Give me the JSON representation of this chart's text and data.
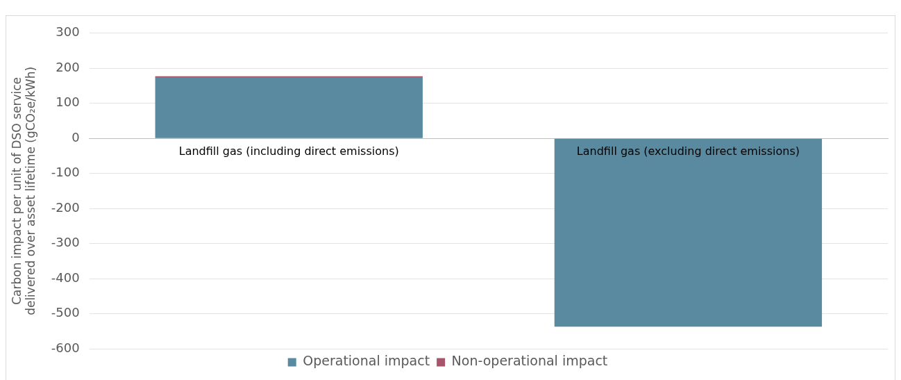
{
  "chart_data": {
    "type": "bar",
    "stacked": true,
    "ylabel": "Carbon impact per unit of DSO service delivered over asset lifetime (gCO₂e/kWh)",
    "categories": [
      "Landfill gas (including direct emissions)",
      "Landfill gas (excluding direct emissions)"
    ],
    "series": [
      {
        "name": "Operational impact",
        "color": "#5a8aa0",
        "values": [
          175,
          -537
        ]
      },
      {
        "name": "Non-operational impact",
        "color": "#a8546a",
        "values": [
          2,
          1
        ]
      }
    ],
    "ylim": [
      -600,
      300
    ],
    "yticks": [
      -600,
      -500,
      -400,
      -300,
      -200,
      -100,
      0,
      100,
      200,
      300
    ],
    "grid": "y",
    "legend": "bottom"
  }
}
